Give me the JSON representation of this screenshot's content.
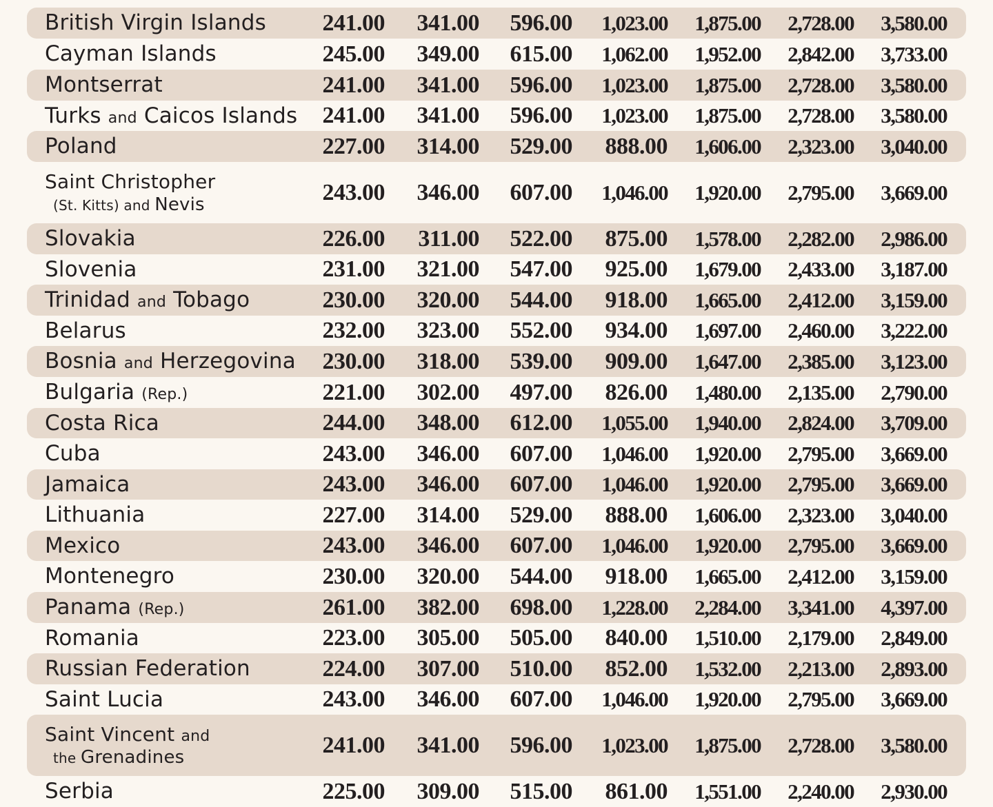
{
  "rows": [
    {
      "name": "British Virgin Islands",
      "values": [
        "241.00",
        "341.00",
        "596.00",
        "1,023.00",
        "1,875.00",
        "2,728.00",
        "3,580.00"
      ]
    },
    {
      "name": "Cayman Islands",
      "values": [
        "245.00",
        "349.00",
        "615.00",
        "1,062.00",
        "1,952.00",
        "2,842.00",
        "3,733.00"
      ]
    },
    {
      "name": "Montserrat",
      "values": [
        "241.00",
        "341.00",
        "596.00",
        "1,023.00",
        "1,875.00",
        "2,728.00",
        "3,580.00"
      ]
    },
    {
      "name": "Turks and Caicos Islands",
      "values": [
        "241.00",
        "341.00",
        "596.00",
        "1,023.00",
        "1,875.00",
        "2,728.00",
        "3,580.00"
      ]
    },
    {
      "name": "Poland",
      "values": [
        "227.00",
        "314.00",
        "529.00",
        "888.00",
        "1,606.00",
        "2,323.00",
        "3,040.00"
      ]
    },
    {
      "name": "Saint Christopher (St. Kitts) and Nevis",
      "values": [
        "243.00",
        "346.00",
        "607.00",
        "1,046.00",
        "1,920.00",
        "2,795.00",
        "3,669.00"
      ]
    },
    {
      "name": "Slovakia",
      "values": [
        "226.00",
        "311.00",
        "522.00",
        "875.00",
        "1,578.00",
        "2,282.00",
        "2,986.00"
      ]
    },
    {
      "name": "Slovenia",
      "values": [
        "231.00",
        "321.00",
        "547.00",
        "925.00",
        "1,679.00",
        "2,433.00",
        "3,187.00"
      ]
    },
    {
      "name": "Trinidad and Tobago",
      "values": [
        "230.00",
        "320.00",
        "544.00",
        "918.00",
        "1,665.00",
        "2,412.00",
        "3,159.00"
      ]
    },
    {
      "name": "Belarus",
      "values": [
        "232.00",
        "323.00",
        "552.00",
        "934.00",
        "1,697.00",
        "2,460.00",
        "3,222.00"
      ]
    },
    {
      "name": "Bosnia and Herzegovina",
      "values": [
        "230.00",
        "318.00",
        "539.00",
        "909.00",
        "1,647.00",
        "2,385.00",
        "3,123.00"
      ]
    },
    {
      "name": "Bulgaria (Rep.)",
      "values": [
        "221.00",
        "302.00",
        "497.00",
        "826.00",
        "1,480.00",
        "2,135.00",
        "2,790.00"
      ]
    },
    {
      "name": "Costa Rica",
      "values": [
        "244.00",
        "348.00",
        "612.00",
        "1,055.00",
        "1,940.00",
        "2,824.00",
        "3,709.00"
      ]
    },
    {
      "name": "Cuba",
      "values": [
        "243.00",
        "346.00",
        "607.00",
        "1,046.00",
        "1,920.00",
        "2,795.00",
        "3,669.00"
      ]
    },
    {
      "name": "Jamaica",
      "values": [
        "243.00",
        "346.00",
        "607.00",
        "1,046.00",
        "1,920.00",
        "2,795.00",
        "3,669.00"
      ]
    },
    {
      "name": "Lithuania",
      "values": [
        "227.00",
        "314.00",
        "529.00",
        "888.00",
        "1,606.00",
        "2,323.00",
        "3,040.00"
      ]
    },
    {
      "name": "Mexico",
      "values": [
        "243.00",
        "346.00",
        "607.00",
        "1,046.00",
        "1,920.00",
        "2,795.00",
        "3,669.00"
      ]
    },
    {
      "name": "Montenegro",
      "values": [
        "230.00",
        "320.00",
        "544.00",
        "918.00",
        "1,665.00",
        "2,412.00",
        "3,159.00"
      ]
    },
    {
      "name": "Panama (Rep.)",
      "values": [
        "261.00",
        "382.00",
        "698.00",
        "1,228.00",
        "2,284.00",
        "3,341.00",
        "4,397.00"
      ]
    },
    {
      "name": "Romania",
      "values": [
        "223.00",
        "305.00",
        "505.00",
        "840.00",
        "1,510.00",
        "2,179.00",
        "2,849.00"
      ]
    },
    {
      "name": "Russian Federation",
      "values": [
        "224.00",
        "307.00",
        "510.00",
        "852.00",
        "1,532.00",
        "2,213.00",
        "2,893.00"
      ]
    },
    {
      "name": "Saint Lucia",
      "values": [
        "243.00",
        "346.00",
        "607.00",
        "1,046.00",
        "1,920.00",
        "2,795.00",
        "3,669.00"
      ]
    },
    {
      "name": "Saint Vincent and the Grenadines",
      "values": [
        "241.00",
        "341.00",
        "596.00",
        "1,023.00",
        "1,875.00",
        "2,728.00",
        "3,580.00"
      ]
    },
    {
      "name": "Serbia",
      "values": [
        "225.00",
        "309.00",
        "515.00",
        "861.00",
        "1,551.00",
        "2,240.00",
        "2,930.00"
      ]
    }
  ]
}
